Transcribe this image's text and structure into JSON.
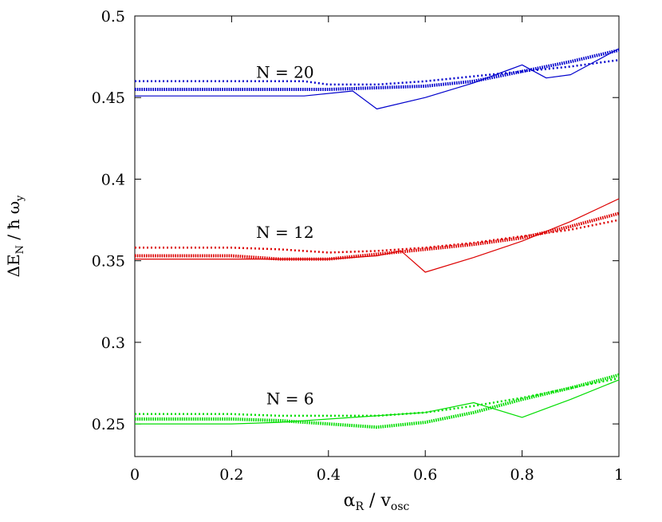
{
  "chart_data": {
    "type": "line",
    "xlabel": {
      "base": "α",
      "base_sub": "R",
      "sep": " / ",
      "unit": "v",
      "unit_sub": "osc"
    },
    "ylabel": {
      "base": "ΔE",
      "base_sub": "N",
      "sep": " / ",
      "unit": "ħ ω",
      "unit_sub": "y"
    },
    "xlim": [
      0,
      1
    ],
    "ylim": [
      0.23,
      0.5
    ],
    "xticks": [
      0,
      0.2,
      0.4,
      0.6,
      0.8,
      1
    ],
    "xtick_labels": [
      "0",
      "0.2",
      "0.4",
      "0.6",
      "0.8",
      "1"
    ],
    "yticks": [
      0.25,
      0.3,
      0.35,
      0.4,
      0.45,
      0.5
    ],
    "ytick_labels": [
      "0.25",
      "0.3",
      "0.35",
      "0.4",
      "0.45",
      "0.5"
    ],
    "grid": false,
    "legend": "none",
    "groups": [
      {
        "label": "N = 20",
        "label_at": [
          0.37,
          0.462
        ],
        "color": "#0000cc",
        "series": [
          {
            "style": "solid",
            "x": [
              0,
              0.1,
              0.2,
              0.3,
              0.35,
              0.45,
              0.5,
              0.6,
              0.7,
              0.8,
              0.85,
              0.9,
              1.0
            ],
            "y": [
              0.451,
              0.451,
              0.451,
              0.451,
              0.451,
              0.454,
              0.443,
              0.45,
              0.459,
              0.47,
              0.462,
              0.464,
              0.48
            ]
          },
          {
            "style": "thick-dotted",
            "x": [
              0,
              0.2,
              0.4,
              0.5,
              0.6,
              0.7,
              0.8,
              0.9,
              1.0
            ],
            "y": [
              0.455,
              0.455,
              0.455,
              0.456,
              0.457,
              0.46,
              0.466,
              0.472,
              0.479
            ]
          },
          {
            "style": "dotted",
            "x": [
              0,
              0.2,
              0.3,
              0.35,
              0.4,
              0.5,
              0.6,
              0.7,
              0.8,
              0.9,
              1.0
            ],
            "y": [
              0.46,
              0.46,
              0.46,
              0.46,
              0.458,
              0.458,
              0.46,
              0.463,
              0.466,
              0.469,
              0.473
            ]
          }
        ]
      },
      {
        "label": "N = 12",
        "label_at": [
          0.37,
          0.364
        ],
        "color": "#dd0000",
        "series": [
          {
            "style": "solid",
            "x": [
              0,
              0.1,
              0.2,
              0.3,
              0.4,
              0.5,
              0.55,
              0.6,
              0.7,
              0.8,
              0.9,
              1.0
            ],
            "y": [
              0.351,
              0.351,
              0.351,
              0.351,
              0.351,
              0.353,
              0.356,
              0.343,
              0.352,
              0.362,
              0.374,
              0.388
            ]
          },
          {
            "style": "thick-dotted",
            "x": [
              0,
              0.2,
              0.3,
              0.4,
              0.5,
              0.6,
              0.7,
              0.8,
              0.9,
              1.0
            ],
            "y": [
              0.353,
              0.353,
              0.351,
              0.351,
              0.354,
              0.357,
              0.36,
              0.364,
              0.371,
              0.379
            ]
          },
          {
            "style": "dotted",
            "x": [
              0,
              0.2,
              0.3,
              0.4,
              0.5,
              0.6,
              0.7,
              0.8,
              0.9,
              1.0
            ],
            "y": [
              0.358,
              0.358,
              0.357,
              0.355,
              0.356,
              0.358,
              0.361,
              0.365,
              0.369,
              0.375
            ]
          }
        ]
      },
      {
        "label": "N = 6",
        "label_at": [
          0.37,
          0.262
        ],
        "color": "#00dd00",
        "series": [
          {
            "style": "solid",
            "x": [
              0,
              0.1,
              0.2,
              0.3,
              0.4,
              0.5,
              0.6,
              0.7,
              0.8,
              0.9,
              1.0
            ],
            "y": [
              0.25,
              0.25,
              0.25,
              0.251,
              0.253,
              0.255,
              0.257,
              0.263,
              0.254,
              0.265,
              0.277
            ]
          },
          {
            "style": "thick-dotted",
            "x": [
              0,
              0.2,
              0.3,
              0.4,
              0.5,
              0.6,
              0.7,
              0.8,
              0.9,
              1.0
            ],
            "y": [
              0.253,
              0.253,
              0.252,
              0.25,
              0.248,
              0.251,
              0.257,
              0.265,
              0.272,
              0.28
            ]
          },
          {
            "style": "dotted",
            "x": [
              0,
              0.2,
              0.3,
              0.4,
              0.5,
              0.6,
              0.7,
              0.8,
              0.9,
              1.0
            ],
            "y": [
              0.256,
              0.256,
              0.255,
              0.255,
              0.255,
              0.257,
              0.261,
              0.266,
              0.272,
              0.278
            ]
          }
        ]
      }
    ]
  }
}
